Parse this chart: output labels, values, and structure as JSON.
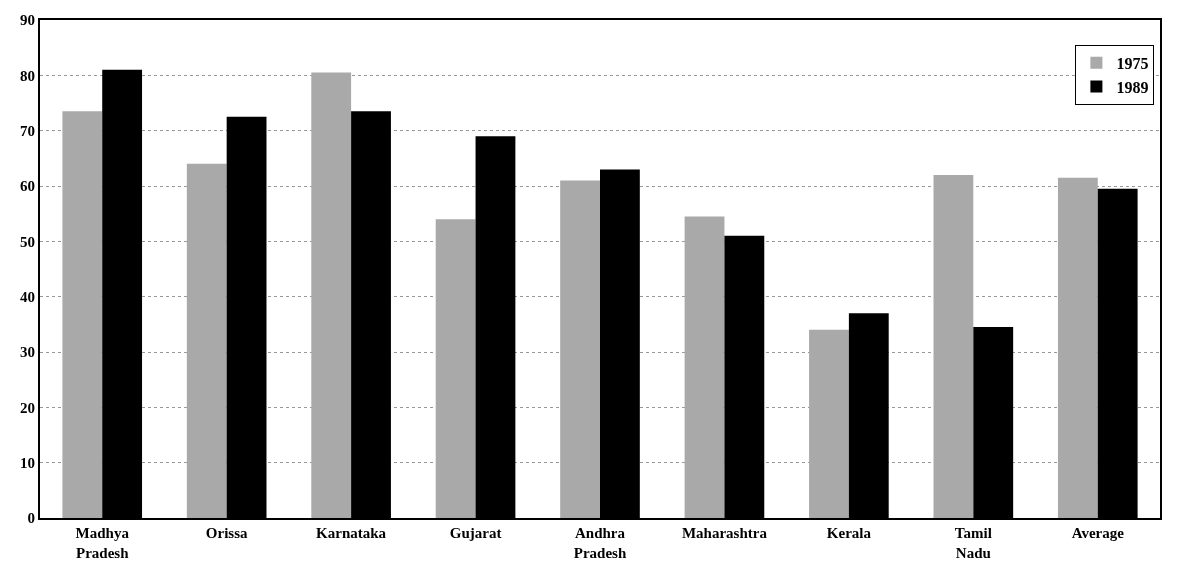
{
  "chart_data": {
    "type": "bar",
    "categories": [
      "Madhya\nPradesh",
      "Orissa",
      "Karnataka",
      "Gujarat",
      "Andhra\nPradesh",
      "Maharashtra",
      "Kerala",
      "Tamil\nNadu",
      "Average"
    ],
    "series": [
      {
        "name": "1975",
        "color": "#a9a9a9",
        "values": [
          73.5,
          64,
          80.5,
          54,
          61,
          54.5,
          34,
          62,
          61.5
        ]
      },
      {
        "name": "1989",
        "color": "#000000",
        "values": [
          81,
          72.5,
          73.5,
          69,
          63,
          51,
          37,
          34.5,
          59.5
        ]
      }
    ],
    "ylim": [
      0,
      90
    ],
    "yticks": [
      0,
      10,
      20,
      30,
      40,
      50,
      60,
      70,
      80,
      90
    ],
    "grid": "y",
    "legend": "top right"
  }
}
